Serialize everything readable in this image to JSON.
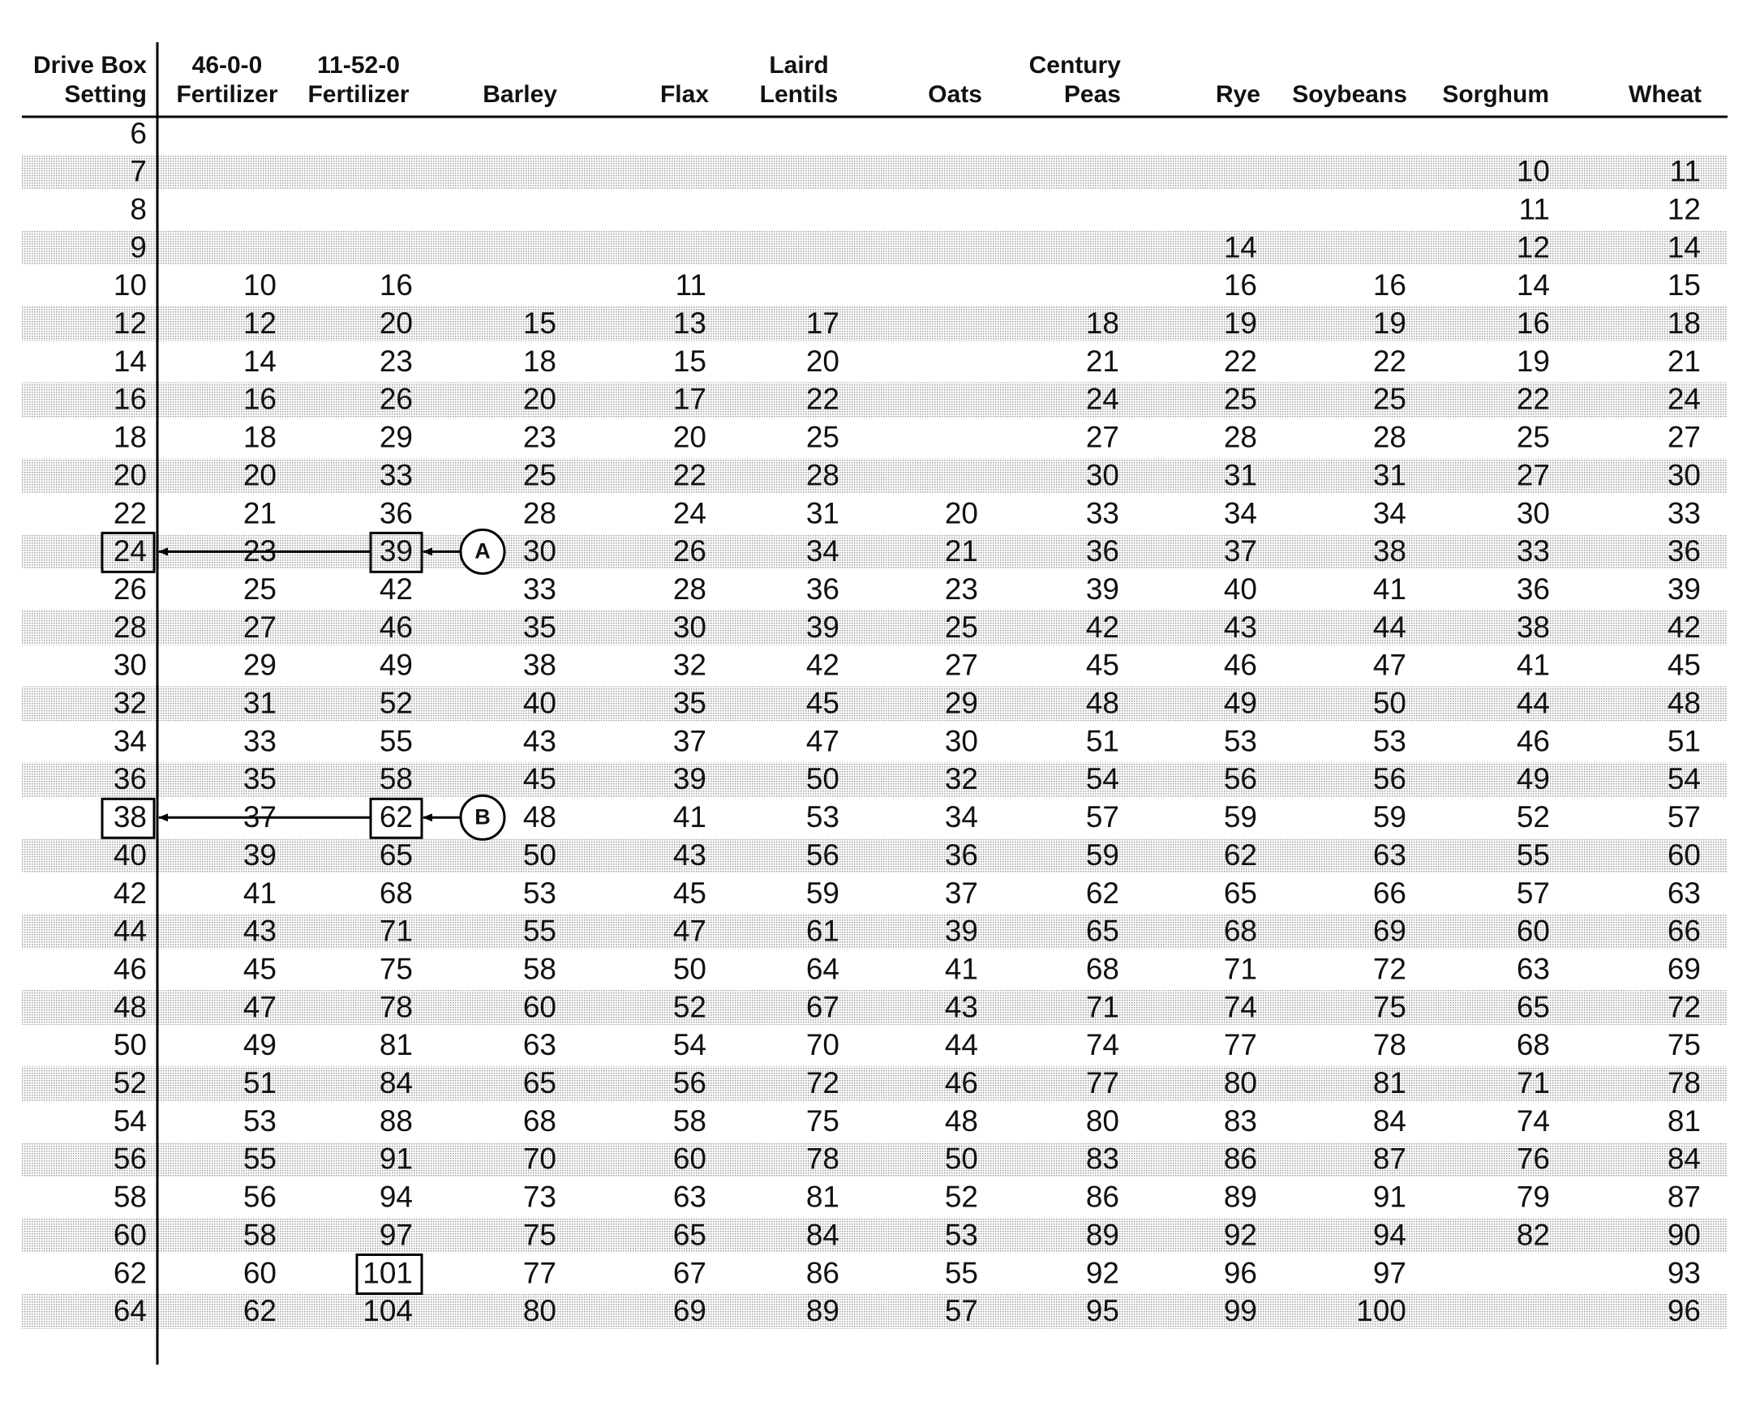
{
  "table": {
    "header": [
      [
        "Drive Box",
        "Setting"
      ],
      [
        "46-0-0",
        "Fertilizer"
      ],
      [
        "11-52-0",
        "Fertilizer"
      ],
      [
        "Barley"
      ],
      [
        "Flax"
      ],
      [
        "Laird",
        "Lentils"
      ],
      [
        "Oats"
      ],
      [
        "Century",
        "Peas"
      ],
      [
        "Rye"
      ],
      [
        "Soybeans"
      ],
      [
        "Sorghum"
      ],
      [
        "Wheat"
      ]
    ],
    "rows": [
      [
        6,
        null,
        null,
        null,
        null,
        null,
        null,
        null,
        null,
        null,
        null,
        null
      ],
      [
        7,
        null,
        null,
        null,
        null,
        null,
        null,
        null,
        null,
        null,
        10,
        11
      ],
      [
        8,
        null,
        null,
        null,
        null,
        null,
        null,
        null,
        null,
        null,
        11,
        12
      ],
      [
        9,
        null,
        null,
        null,
        null,
        null,
        null,
        null,
        14,
        null,
        12,
        14
      ],
      [
        10,
        10,
        16,
        null,
        11,
        null,
        null,
        null,
        16,
        16,
        14,
        15
      ],
      [
        12,
        12,
        20,
        15,
        13,
        17,
        null,
        18,
        19,
        19,
        16,
        18
      ],
      [
        14,
        14,
        23,
        18,
        15,
        20,
        null,
        21,
        22,
        22,
        19,
        21
      ],
      [
        16,
        16,
        26,
        20,
        17,
        22,
        null,
        24,
        25,
        25,
        22,
        24
      ],
      [
        18,
        18,
        29,
        23,
        20,
        25,
        null,
        27,
        28,
        28,
        25,
        27
      ],
      [
        20,
        20,
        33,
        25,
        22,
        28,
        null,
        30,
        31,
        31,
        27,
        30
      ],
      [
        22,
        21,
        36,
        28,
        24,
        31,
        20,
        33,
        34,
        34,
        30,
        33
      ],
      [
        24,
        23,
        39,
        30,
        26,
        34,
        21,
        36,
        37,
        38,
        33,
        36
      ],
      [
        26,
        25,
        42,
        33,
        28,
        36,
        23,
        39,
        40,
        41,
        36,
        39
      ],
      [
        28,
        27,
        46,
        35,
        30,
        39,
        25,
        42,
        43,
        44,
        38,
        42
      ],
      [
        30,
        29,
        49,
        38,
        32,
        42,
        27,
        45,
        46,
        47,
        41,
        45
      ],
      [
        32,
        31,
        52,
        40,
        35,
        45,
        29,
        48,
        49,
        50,
        44,
        48
      ],
      [
        34,
        33,
        55,
        43,
        37,
        47,
        30,
        51,
        53,
        53,
        46,
        51
      ],
      [
        36,
        35,
        58,
        45,
        39,
        50,
        32,
        54,
        56,
        56,
        49,
        54
      ],
      [
        38,
        37,
        62,
        48,
        41,
        53,
        34,
        57,
        59,
        59,
        52,
        57
      ],
      [
        40,
        39,
        65,
        50,
        43,
        56,
        36,
        59,
        62,
        63,
        55,
        60
      ],
      [
        42,
        41,
        68,
        53,
        45,
        59,
        37,
        62,
        65,
        66,
        57,
        63
      ],
      [
        44,
        43,
        71,
        55,
        47,
        61,
        39,
        65,
        68,
        69,
        60,
        66
      ],
      [
        46,
        45,
        75,
        58,
        50,
        64,
        41,
        68,
        71,
        72,
        63,
        69
      ],
      [
        48,
        47,
        78,
        60,
        52,
        67,
        43,
        71,
        74,
        75,
        65,
        72
      ],
      [
        50,
        49,
        81,
        63,
        54,
        70,
        44,
        74,
        77,
        78,
        68,
        75
      ],
      [
        52,
        51,
        84,
        65,
        56,
        72,
        46,
        77,
        80,
        81,
        71,
        78
      ],
      [
        54,
        53,
        88,
        68,
        58,
        75,
        48,
        80,
        83,
        84,
        74,
        81
      ],
      [
        56,
        55,
        91,
        70,
        60,
        78,
        50,
        83,
        86,
        87,
        76,
        84
      ],
      [
        58,
        56,
        94,
        73,
        63,
        81,
        52,
        86,
        89,
        91,
        79,
        87
      ],
      [
        60,
        58,
        97,
        75,
        65,
        84,
        53,
        89,
        92,
        94,
        82,
        90
      ],
      [
        62,
        60,
        101,
        77,
        67,
        86,
        55,
        92,
        96,
        97,
        null,
        93
      ],
      [
        64,
        62,
        104,
        80,
        69,
        89,
        57,
        95,
        99,
        100,
        null,
        96
      ]
    ]
  },
  "callouts": [
    "A",
    "B"
  ]
}
